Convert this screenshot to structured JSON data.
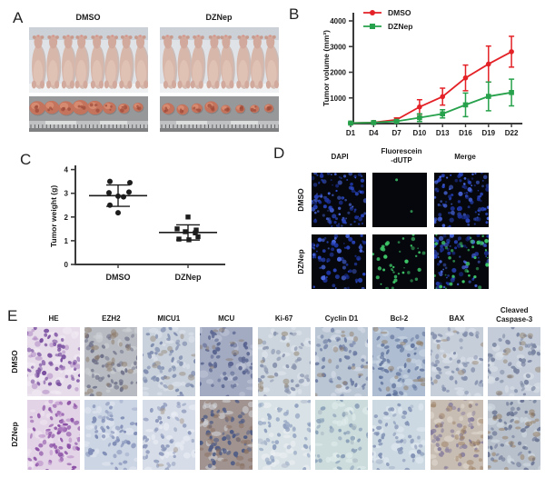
{
  "panel_a": {
    "label": "A",
    "groups": [
      {
        "label": "DMSO",
        "mice_count": 8,
        "tumor_sizes": [
          1.0,
          0.95,
          1.0,
          1.05,
          1.0,
          0.85,
          0.72,
          0.65
        ]
      },
      {
        "label": "DZNep",
        "mice_count": 8,
        "tumor_sizes": [
          0.8,
          0.75,
          0.7,
          0.85,
          0.62,
          0.6,
          0.58,
          0.6
        ]
      }
    ],
    "photo_colors": {
      "bg_top": "#c6ccd2",
      "bg_mid": "#dfe3e7",
      "bg_bottom": "#f0f1f2",
      "mouse_body": "#d8b7ab",
      "mouse_head": "#d2aa9d",
      "mouse_ear": "#c79a8e",
      "strip_bg": "#96989a",
      "ruler_bg": "#c0c1c3",
      "ruler_light": "#dcdddd",
      "tumor_main": "#c4735d",
      "tumor_light": "#d98f74",
      "tumor_dark": "#9c4a39"
    }
  },
  "panel_b": {
    "label": "B"
  },
  "panel_c": {
    "label": "C"
  },
  "panel_d": {
    "label": "D",
    "col_labels": [
      "DAPI",
      "Fluorescein\n-dUTP",
      "Merge"
    ],
    "row_labels": [
      "DMSO",
      "DZNep"
    ],
    "colors": {
      "background": "#05070d",
      "nucleus_blue": "#2c49c8",
      "tunel_green": "#3ec768"
    },
    "cells": [
      {
        "row": "DMSO",
        "col": "DAPI",
        "blue": 115,
        "green": 0
      },
      {
        "row": "DMSO",
        "col": "Fluorescein-dUTP",
        "blue": 0,
        "green": 2
      },
      {
        "row": "DMSO",
        "col": "Merge",
        "blue": 115,
        "green": 0
      },
      {
        "row": "DZNep",
        "col": "DAPI",
        "blue": 85,
        "green": 0
      },
      {
        "row": "DZNep",
        "col": "Fluorescein-dUTP",
        "blue": 0,
        "green": 42
      },
      {
        "row": "DZNep",
        "col": "Merge",
        "blue": 85,
        "green": 38
      }
    ]
  },
  "panel_e": {
    "label": "E",
    "col_labels": [
      "HE",
      "EZH2",
      "MICU1",
      "MCU",
      "Ki-67",
      "Cyclin D1",
      "Bcl-2",
      "BAX",
      "Cleaved\nCaspase-3"
    ],
    "row_labels": [
      "DMSO",
      "DZNep"
    ],
    "cells": [
      {
        "bg": "#e7dcea",
        "gap": "#f2ecf4",
        "nuc": "#7a4fa0",
        "acc": "#a97fc0",
        "nd": 72,
        "ad": 18
      },
      {
        "bg": "#b8bcc2",
        "gap": "#d0d3d8",
        "nuc": "#6e7088",
        "acc": "#8d7a68",
        "nd": 60,
        "ad": 24
      },
      {
        "bg": "#c9d1dc",
        "gap": "#e0e5ec",
        "nuc": "#7e8cae",
        "acc": "#9a8d80",
        "nd": 58,
        "ad": 12
      },
      {
        "bg": "#a3abc2",
        "gap": "#c3c9d8",
        "nuc": "#5a6590",
        "acc": "#8a7d72",
        "nd": 66,
        "ad": 10
      },
      {
        "bg": "#ccd4dd",
        "gap": "#e2e8ee",
        "nuc": "#8b96b0",
        "acc": "#8f7f6c",
        "nd": 58,
        "ad": 12
      },
      {
        "bg": "#bac6d4",
        "gap": "#d8e0ea",
        "nuc": "#6f7ea4",
        "acc": "#93806d",
        "nd": 60,
        "ad": 14
      },
      {
        "bg": "#aebdd2",
        "gap": "#cfdae6",
        "nuc": "#64779f",
        "acc": "#8f7c66",
        "nd": 62,
        "ad": 16
      },
      {
        "bg": "#c6ceda",
        "gap": "#dee4ec",
        "nuc": "#8490ac",
        "acc": "#9b8874",
        "nd": 58,
        "ad": 8
      },
      {
        "bg": "#c3ccd8",
        "gap": "#dce2ea",
        "nuc": "#7a85a2",
        "acc": "#96836f",
        "nd": 60,
        "ad": 10
      },
      {
        "bg": "#e3d3e6",
        "gap": "#f1e8f2",
        "nuc": "#8a4fa5",
        "acc": "#b07ec2",
        "nd": 82,
        "ad": 20
      },
      {
        "bg": "#ccd5e4",
        "gap": "#e3e9f2",
        "nuc": "#7f8cb5",
        "acc": "#9aa5c6",
        "nd": 56,
        "ad": 6
      },
      {
        "bg": "#d7dde8",
        "gap": "#ebeff5",
        "nuc": "#8c98bb",
        "acc": "#a89a8c",
        "nd": 52,
        "ad": 5
      },
      {
        "bg": "#a09390",
        "gap": "#d5d9de",
        "nuc": "#4f5c85",
        "acc": "#8a6f5f",
        "nd": 58,
        "ad": 30
      },
      {
        "bg": "#d9e2e6",
        "gap": "#ecf1f3",
        "nuc": "#90a2c0",
        "acc": "#a9b6ca",
        "nd": 54,
        "ad": 5
      },
      {
        "bg": "#ccdbdc",
        "gap": "#e4eeee",
        "nuc": "#8aa0b8",
        "acc": "#a3b3bd",
        "nd": 52,
        "ad": 6
      },
      {
        "bg": "#ccd8e2",
        "gap": "#e4ecf2",
        "nuc": "#8494b6",
        "acc": "#9faec6",
        "nd": 56,
        "ad": 5
      },
      {
        "bg": "#c8bdb2",
        "gap": "#e2dcd4",
        "nuc": "#887f9e",
        "acc": "#9c8063",
        "nd": 56,
        "ad": 28
      },
      {
        "bg": "#b8c0cc",
        "gap": "#d6dce4",
        "nuc": "#6b7694",
        "acc": "#94795c",
        "nd": 62,
        "ad": 22
      }
    ]
  },
  "chart_data": [
    {
      "type": "line",
      "panel": "B",
      "title": "",
      "xlabel": "",
      "ylabel": "Tumor volume (mm³)",
      "categories": [
        "D1",
        "D4",
        "D7",
        "D10",
        "D13",
        "D16",
        "D19",
        "D22"
      ],
      "ylim": [
        0,
        4000
      ],
      "yticks": [
        1000,
        2000,
        3000,
        4000
      ],
      "legend_position": "top-left",
      "grid": false,
      "series": [
        {
          "name": "DMSO",
          "color": "#e32126",
          "marker": "circle",
          "values": [
            20,
            45,
            150,
            650,
            1050,
            1780,
            2320,
            2800
          ],
          "errors": [
            15,
            25,
            70,
            280,
            330,
            500,
            700,
            600
          ]
        },
        {
          "name": "DZNep",
          "color": "#27a14b",
          "marker": "square",
          "values": [
            20,
            40,
            90,
            230,
            380,
            730,
            1060,
            1210
          ],
          "errors": [
            10,
            15,
            45,
            150,
            160,
            460,
            560,
            520
          ]
        }
      ]
    },
    {
      "type": "scatter",
      "panel": "C",
      "title": "",
      "xlabel": "",
      "ylabel": "Tumor weight (g)",
      "ylim": [
        0,
        4
      ],
      "yticks": [
        0,
        1,
        2,
        3,
        4
      ],
      "grid": false,
      "point_color": "#1c1c1c",
      "groups": [
        {
          "name": "DMSO",
          "marker": "circle",
          "mean": 2.9,
          "sd_low": 2.45,
          "sd_high": 3.35,
          "points": [
            {
              "dx": -9,
              "y": 3.5
            },
            {
              "dx": 13,
              "y": 3.45
            },
            {
              "dx": -10,
              "y": 3.02
            },
            {
              "dx": 12,
              "y": 3.05
            },
            {
              "dx": 0,
              "y": 2.88
            },
            {
              "dx": 6,
              "y": 2.85
            },
            {
              "dx": -9,
              "y": 2.5
            },
            {
              "dx": 0,
              "y": 2.18
            }
          ]
        },
        {
          "name": "DZNep",
          "marker": "square",
          "mean": 1.35,
          "sd_low": 1.03,
          "sd_high": 1.67,
          "points": [
            {
              "dx": 0,
              "y": 2.0
            },
            {
              "dx": -12,
              "y": 1.5
            },
            {
              "dx": 9,
              "y": 1.45
            },
            {
              "dx": -3,
              "y": 1.38
            },
            {
              "dx": 8,
              "y": 1.33
            },
            {
              "dx": -10,
              "y": 1.07
            },
            {
              "dx": 1,
              "y": 1.04
            },
            {
              "dx": 11,
              "y": 1.17
            }
          ]
        }
      ]
    }
  ]
}
